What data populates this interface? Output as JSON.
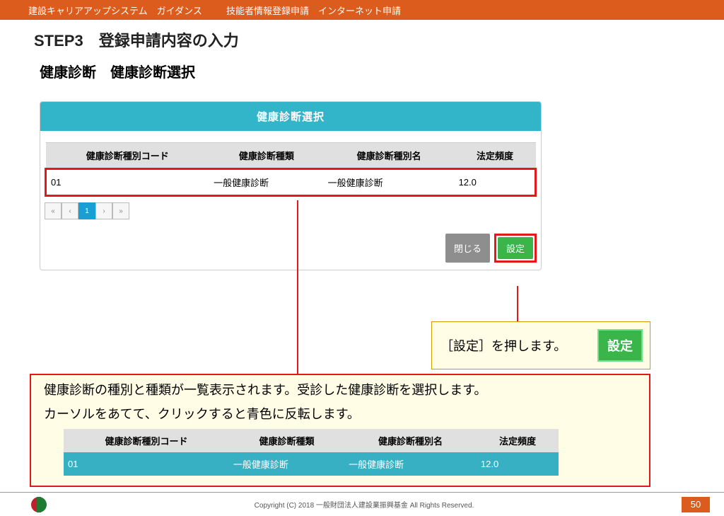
{
  "topbar": {
    "left": "建設キャリアアップシステム　ガイダンス",
    "right": "技能者情報登録申請　インターネット申請"
  },
  "step": {
    "title": "STEP3　登録申請内容の入力",
    "subtitle": "健康診断　健康診断選択"
  },
  "dialog": {
    "header": "健康診断選択",
    "columns": [
      "健康診断種別コード",
      "健康診断種類",
      "健康診断種別名",
      "法定頻度"
    ],
    "row": {
      "code": "01",
      "kind": "一般健康診断",
      "name": "一般健康診断",
      "freq": "12.0"
    },
    "pager": {
      "first": "«",
      "prev": "‹",
      "page": "1",
      "next": "›",
      "last": "»"
    },
    "actions": {
      "close": "閉じる",
      "set": "設定"
    }
  },
  "callout_settei": {
    "text": "［設定］を押します。",
    "btn": "設定"
  },
  "callout_main": {
    "line1": "健康診断の種別と種類が一覧表示されます。受診した健康診断を選択します。",
    "line2": "カーソルをあてて、クリックすると青色に反転します。",
    "columns": [
      "健康診断種別コード",
      "健康診断種類",
      "健康診断種別名",
      "法定頻度"
    ],
    "row": {
      "code": "01",
      "kind": "一般健康診断",
      "name": "一般健康診断",
      "freq": "12.0"
    }
  },
  "footer": {
    "copyright": "Copyright (C) 2018 一般財団法人建設業振興基金 All Rights Reserved.",
    "page": "50"
  }
}
